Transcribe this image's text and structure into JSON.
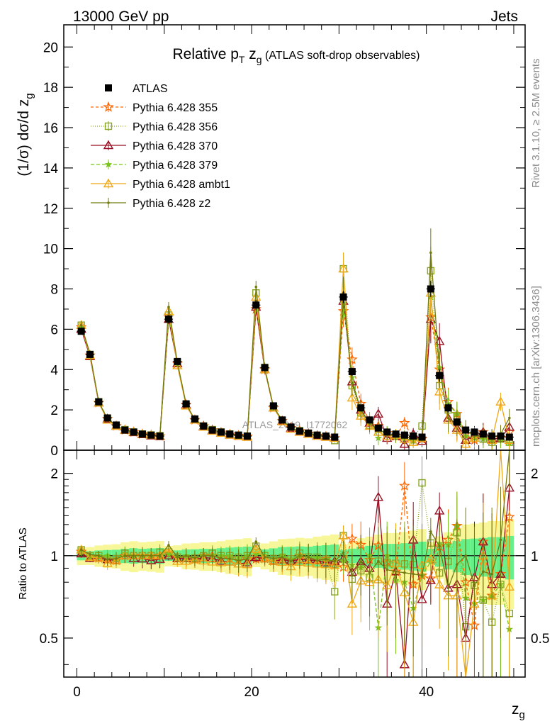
{
  "header": {
    "left": "13000 GeV pp",
    "right": "Jets"
  },
  "side_labels": {
    "rivet": "Rivet 3.1.10, ≥ 2.5M events",
    "mcplots": "mcplots.cern.ch [arXiv:1306.3436]"
  },
  "watermark": "ATLAS_2019_I1772062",
  "chart_data": [
    {
      "type": "line",
      "title_main": "Relative p",
      "title_sub1": "T",
      "title_mid": " z",
      "title_sub2": "g",
      "title_rest": " (ATLAS soft-drop observables)",
      "ylabel": "(1/σ) dσ/d z",
      "ylabel_sub": "g",
      "xlim": [
        -1.5,
        51.3
      ],
      "ylim": [
        0,
        21.1
      ],
      "yticks": [
        0,
        2,
        4,
        6,
        8,
        10,
        12,
        14,
        16,
        18,
        20
      ],
      "ytick_labels": [
        "0",
        "2",
        "4",
        "6",
        "8",
        "10",
        "12",
        "14",
        "16",
        "18",
        "20"
      ],
      "grid": false,
      "legend_placement": "top-left",
      "x": [
        0.5,
        1.5,
        2.5,
        3.5,
        4.5,
        5.5,
        6.5,
        7.5,
        8.5,
        9.5,
        10.5,
        11.5,
        12.5,
        13.5,
        14.5,
        15.5,
        16.5,
        17.5,
        18.5,
        19.5,
        20.5,
        21.5,
        22.5,
        23.5,
        24.5,
        25.5,
        26.5,
        27.5,
        28.5,
        29.5,
        30.5,
        31.5,
        32.5,
        33.5,
        34.5,
        35.5,
        36.5,
        37.5,
        38.5,
        39.5,
        40.5,
        41.5,
        42.5,
        43.5,
        44.5,
        45.5,
        46.5,
        47.5,
        48.5,
        49.5
      ],
      "series": [
        {
          "name": "ATLAS",
          "color": "#000000",
          "marker": "square",
          "values": [
            5.9,
            4.75,
            2.4,
            1.6,
            1.25,
            1.0,
            0.9,
            0.8,
            0.75,
            0.7,
            6.5,
            4.4,
            2.3,
            1.55,
            1.2,
            1.0,
            0.9,
            0.8,
            0.75,
            0.7,
            7.2,
            4.1,
            2.2,
            1.5,
            1.15,
            0.95,
            0.85,
            0.75,
            0.7,
            0.65,
            7.6,
            3.9,
            2.1,
            1.5,
            1.1,
            0.9,
            0.8,
            0.75,
            0.7,
            0.65,
            8.0,
            3.7,
            2.1,
            1.4,
            1.0,
            0.9,
            0.8,
            0.7,
            0.7,
            0.65
          ],
          "errors": [
            0.15,
            0.12,
            0.08,
            0.06,
            0.05,
            0.05,
            0.05,
            0.04,
            0.04,
            0.04,
            0.2,
            0.15,
            0.1,
            0.07,
            0.06,
            0.05,
            0.05,
            0.05,
            0.05,
            0.05,
            0.25,
            0.18,
            0.12,
            0.1,
            0.08,
            0.07,
            0.06,
            0.06,
            0.06,
            0.06,
            0.3,
            0.2,
            0.15,
            0.12,
            0.1,
            0.09,
            0.08,
            0.08,
            0.08,
            0.08,
            0.4,
            0.3,
            0.22,
            0.18,
            0.15,
            0.14,
            0.13,
            0.12,
            0.12,
            0.12
          ]
        },
        {
          "name": "Pythia 6.428 355",
          "color": "#ff6600",
          "dash": "4,3",
          "marker": "star",
          "values": [
            6.1,
            4.7,
            2.35,
            1.55,
            1.2,
            1.0,
            0.9,
            0.8,
            0.75,
            0.7,
            6.6,
            4.3,
            2.25,
            1.5,
            1.2,
            1.0,
            0.88,
            0.78,
            0.72,
            0.68,
            7.0,
            4.0,
            2.1,
            1.45,
            1.1,
            0.95,
            0.82,
            0.72,
            0.68,
            0.6,
            6.9,
            4.5,
            2.3,
            1.45,
            1.2,
            0.85,
            0.7,
            1.35,
            0.55,
            0.55,
            6.6,
            4.0,
            2.4,
            1.8,
            0.8,
            0.5,
            0.9,
            0.5,
            0.6,
            0.9
          ],
          "errors": [
            0.2,
            0.15,
            0.1,
            0.08,
            0.07,
            0.06,
            0.06,
            0.06,
            0.05,
            0.05,
            0.25,
            0.2,
            0.15,
            0.1,
            0.08,
            0.07,
            0.07,
            0.07,
            0.07,
            0.07,
            0.3,
            0.25,
            0.18,
            0.14,
            0.12,
            0.1,
            0.1,
            0.1,
            0.1,
            0.1,
            0.8,
            0.6,
            0.5,
            0.4,
            0.35,
            0.3,
            0.3,
            0.3,
            0.3,
            0.3,
            1.2,
            0.9,
            0.7,
            0.6,
            0.5,
            0.45,
            0.45,
            0.45,
            0.45,
            0.45
          ]
        },
        {
          "name": "Pythia 6.428 356",
          "color": "#8aa626",
          "dash": "1,2",
          "marker": "square-open",
          "values": [
            6.2,
            4.75,
            2.4,
            1.55,
            1.22,
            1.02,
            0.9,
            0.8,
            0.75,
            0.72,
            6.7,
            4.35,
            2.25,
            1.52,
            1.2,
            1.02,
            0.9,
            0.8,
            0.74,
            0.7,
            7.8,
            4.1,
            2.15,
            1.48,
            1.12,
            0.97,
            0.84,
            0.74,
            0.68,
            0.48,
            9.0,
            3.2,
            1.85,
            1.25,
            1.05,
            0.85,
            0.75,
            0.7,
            0.65,
            1.2,
            8.9,
            3.2,
            2.0,
            1.7,
            0.55,
            0.7,
            0.55,
            0.4,
            0.55,
            0.4
          ],
          "errors": [
            0.2,
            0.15,
            0.1,
            0.08,
            0.07,
            0.06,
            0.06,
            0.06,
            0.05,
            0.05,
            0.25,
            0.2,
            0.15,
            0.1,
            0.08,
            0.07,
            0.07,
            0.07,
            0.07,
            0.07,
            0.3,
            0.25,
            0.18,
            0.14,
            0.12,
            0.1,
            0.1,
            0.1,
            0.1,
            0.1,
            0.8,
            0.6,
            0.5,
            0.4,
            0.35,
            0.3,
            0.3,
            0.3,
            0.3,
            0.3,
            1.2,
            0.9,
            0.7,
            0.6,
            0.5,
            0.45,
            0.45,
            0.45,
            0.45,
            0.45
          ]
        },
        {
          "name": "Pythia 6.428 370",
          "color": "#990f22",
          "dash": "",
          "marker": "triangle-open",
          "values": [
            6.0,
            4.65,
            2.35,
            1.55,
            1.2,
            1.0,
            0.88,
            0.78,
            0.72,
            0.68,
            6.5,
            4.3,
            2.25,
            1.5,
            1.18,
            0.98,
            0.86,
            0.76,
            0.7,
            0.66,
            7.1,
            4.0,
            2.1,
            1.45,
            1.1,
            0.92,
            0.82,
            0.72,
            0.66,
            0.62,
            7.4,
            3.4,
            2.0,
            1.35,
            1.8,
            0.6,
            0.7,
            0.3,
            0.8,
            0.45,
            6.5,
            5.4,
            1.6,
            1.1,
            0.5,
            0.75,
            0.9,
            0.55,
            0.6,
            1.15
          ],
          "errors": [
            0.2,
            0.15,
            0.1,
            0.08,
            0.07,
            0.06,
            0.06,
            0.06,
            0.05,
            0.05,
            0.25,
            0.2,
            0.15,
            0.1,
            0.08,
            0.07,
            0.07,
            0.07,
            0.07,
            0.07,
            0.3,
            0.25,
            0.18,
            0.14,
            0.12,
            0.1,
            0.1,
            0.1,
            0.1,
            0.1,
            0.8,
            0.6,
            0.5,
            0.4,
            0.35,
            0.3,
            0.3,
            0.3,
            0.3,
            0.3,
            1.2,
            0.9,
            0.7,
            0.6,
            0.5,
            0.45,
            0.45,
            0.45,
            0.45,
            0.45
          ]
        },
        {
          "name": "Pythia 6.428 379",
          "color": "#7ac21e",
          "dash": "5,3",
          "marker": "star-filled",
          "values": [
            6.1,
            4.7,
            2.4,
            1.6,
            1.22,
            1.02,
            0.9,
            0.8,
            0.75,
            0.7,
            6.6,
            4.35,
            2.3,
            1.52,
            1.2,
            1.0,
            0.9,
            0.8,
            0.74,
            0.7,
            7.3,
            4.1,
            2.15,
            1.5,
            1.12,
            0.95,
            0.84,
            0.74,
            0.68,
            0.62,
            7.3,
            3.6,
            1.9,
            1.5,
            0.6,
            0.9,
            0.65,
            0.6,
            0.45,
            0.55,
            7.6,
            4.1,
            2.3,
            1.8,
            0.7,
            0.6,
            0.55,
            0.5,
            0.55,
            0.35
          ],
          "errors": [
            0.2,
            0.15,
            0.1,
            0.08,
            0.07,
            0.06,
            0.06,
            0.06,
            0.05,
            0.05,
            0.25,
            0.2,
            0.15,
            0.1,
            0.08,
            0.07,
            0.07,
            0.07,
            0.07,
            0.07,
            0.3,
            0.25,
            0.18,
            0.14,
            0.12,
            0.1,
            0.1,
            0.1,
            0.1,
            0.1,
            0.8,
            0.6,
            0.5,
            0.4,
            0.35,
            0.3,
            0.3,
            0.3,
            0.3,
            0.3,
            1.2,
            0.9,
            0.7,
            0.6,
            0.5,
            0.45,
            0.45,
            0.45,
            0.45,
            0.45
          ]
        },
        {
          "name": "Pythia 6.428 ambt1",
          "color": "#f0a818",
          "dash": "",
          "marker": "triangle-open",
          "values": [
            6.2,
            4.7,
            2.35,
            1.5,
            1.2,
            1.0,
            0.9,
            0.8,
            0.75,
            0.7,
            6.9,
            4.2,
            2.2,
            1.5,
            1.15,
            0.95,
            0.85,
            0.76,
            0.7,
            0.65,
            7.6,
            4.0,
            2.1,
            1.42,
            1.05,
            0.9,
            0.8,
            0.7,
            0.65,
            0.6,
            9.0,
            2.6,
            1.7,
            1.2,
            0.9,
            0.7,
            0.75,
            0.55,
            0.4,
            0.6,
            7.8,
            2.9,
            1.5,
            1.0,
            0.3,
            0.6,
            0.8,
            0.5,
            2.4,
            0.5
          ],
          "errors": [
            0.2,
            0.15,
            0.1,
            0.08,
            0.07,
            0.06,
            0.06,
            0.06,
            0.05,
            0.05,
            0.25,
            0.2,
            0.15,
            0.1,
            0.08,
            0.07,
            0.07,
            0.07,
            0.07,
            0.07,
            0.3,
            0.25,
            0.18,
            0.14,
            0.12,
            0.1,
            0.1,
            0.1,
            0.1,
            0.1,
            0.8,
            0.6,
            0.5,
            0.4,
            0.35,
            0.3,
            0.3,
            0.3,
            0.3,
            0.3,
            1.2,
            0.9,
            0.7,
            0.6,
            0.5,
            0.45,
            0.45,
            0.45,
            0.45,
            0.45
          ]
        },
        {
          "name": "Pythia 6.428 z2",
          "color": "#737a10",
          "dash": "",
          "marker": "dot",
          "values": [
            6.2,
            4.8,
            2.4,
            1.55,
            1.22,
            1.0,
            0.9,
            0.8,
            0.75,
            0.7,
            7.1,
            4.35,
            2.3,
            1.52,
            1.2,
            1.0,
            0.88,
            0.78,
            0.72,
            0.68,
            8.1,
            4.05,
            2.15,
            1.48,
            1.1,
            0.95,
            0.84,
            0.72,
            0.68,
            0.62,
            7.8,
            3.3,
            2.0,
            1.3,
            1.05,
            0.8,
            0.7,
            0.65,
            0.6,
            0.55,
            9.8,
            4.0,
            1.6,
            1.3,
            1.0,
            0.7,
            0.7,
            0.6,
            0.8,
            1.6
          ],
          "errors": [
            0.2,
            0.15,
            0.1,
            0.08,
            0.07,
            0.06,
            0.06,
            0.06,
            0.05,
            0.05,
            0.25,
            0.2,
            0.15,
            0.1,
            0.08,
            0.07,
            0.07,
            0.07,
            0.07,
            0.07,
            0.3,
            0.25,
            0.18,
            0.14,
            0.12,
            0.1,
            0.1,
            0.1,
            0.1,
            0.1,
            0.8,
            0.6,
            0.5,
            0.4,
            0.35,
            0.3,
            0.3,
            0.3,
            0.3,
            0.3,
            1.2,
            0.9,
            0.7,
            0.6,
            0.5,
            0.45,
            0.45,
            0.45,
            0.45,
            0.45
          ]
        }
      ]
    },
    {
      "type": "line",
      "ylabel": "Ratio to ATLAS",
      "xlabel_main": "z",
      "xlabel_sub": "g",
      "ylim": [
        0.36,
        2.43
      ],
      "log_scale": true,
      "yticks": [
        0.5,
        1,
        2
      ],
      "ytick_labels": [
        "0.5",
        "1",
        "2"
      ],
      "xticks": [
        0,
        10,
        20,
        30,
        40
      ],
      "xtick_labels": [
        "0",
        "",
        "20",
        "",
        "40"
      ],
      "grid": false,
      "reference_line": 1,
      "band_color_stat": "#66f08a",
      "band_color_syst": "#f7f79a"
    }
  ]
}
